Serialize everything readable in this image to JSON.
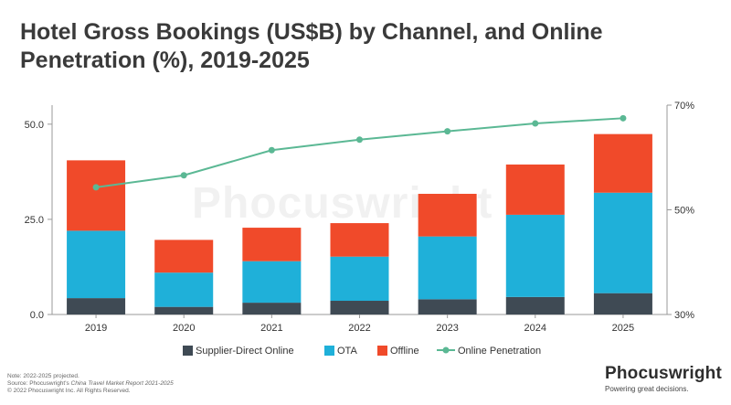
{
  "title": "Hotel Gross Bookings (US$B) by Channel, and Online Penetration (%), 2019-2025",
  "watermark": "Phocuswright",
  "footer": {
    "note": "Note: 2022-2025 projected.",
    "source_prefix": "Source: Phocuswright's ",
    "source_italic": "China Travel Market Report 2021-2025",
    "copyright": "© 2022 Phocuswright Inc. All Rights Reserved."
  },
  "brand": {
    "name": "Phocuswright",
    "tagline": "Powering great decisions."
  },
  "colors": {
    "supplier": "#3f4a54",
    "ota": "#1fb0d9",
    "offline": "#f04a2a",
    "penetration": "#5bb894",
    "axis": "#999999"
  },
  "chart_data": {
    "type": "bar",
    "stacked": true,
    "categories": [
      "2019",
      "2020",
      "2021",
      "2022",
      "2023",
      "2024",
      "2025"
    ],
    "series": [
      {
        "name": "Supplier-Direct Online",
        "values": [
          4.3,
          2.0,
          3.1,
          3.6,
          4.0,
          4.6,
          5.6
        ]
      },
      {
        "name": "OTA",
        "values": [
          17.7,
          9.0,
          10.9,
          11.6,
          16.5,
          21.6,
          26.4
        ]
      },
      {
        "name": "Offline",
        "values": [
          18.5,
          8.6,
          8.8,
          8.8,
          11.2,
          13.2,
          15.4
        ]
      }
    ],
    "line_series": {
      "name": "Online Penetration",
      "axis": "right",
      "values": [
        54.3,
        56.6,
        61.4,
        63.4,
        65.0,
        66.5,
        67.5
      ]
    },
    "y_left": {
      "min": 0,
      "max": 55,
      "ticks": [
        "0.0",
        "25.0",
        "50.0"
      ],
      "tick_values": [
        0,
        25,
        50
      ]
    },
    "y_right": {
      "min": 30,
      "max": 70,
      "ticks": [
        "30%",
        "50%",
        "70%"
      ],
      "tick_values": [
        30,
        50,
        70
      ]
    },
    "legend": {
      "placement": "bottom"
    },
    "grid": false
  }
}
